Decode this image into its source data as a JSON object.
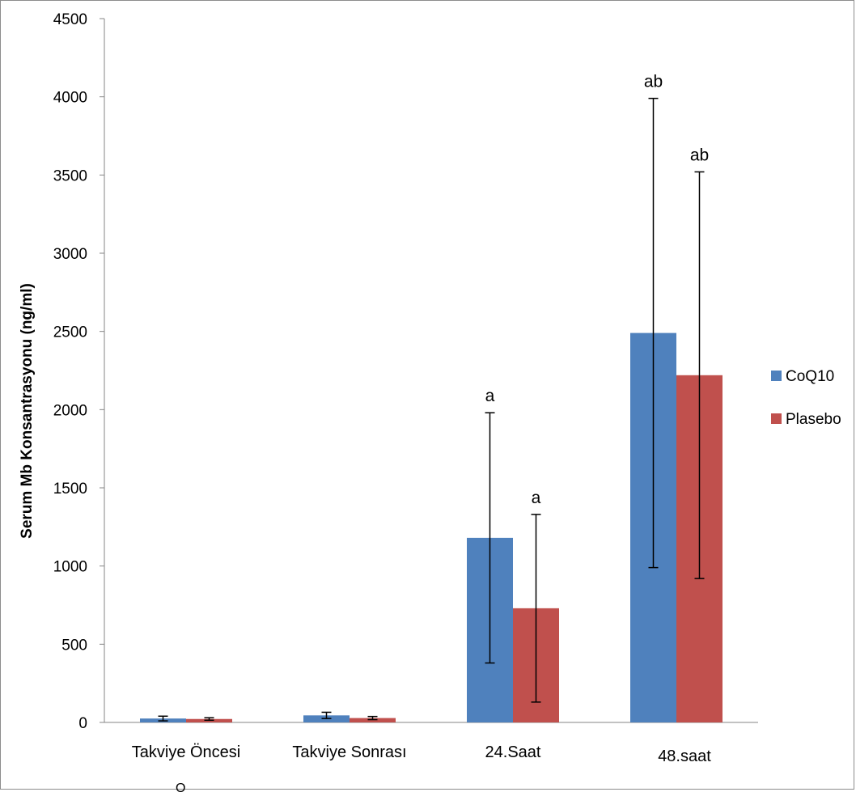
{
  "chart_data": {
    "type": "bar",
    "title": "",
    "xlabel": "",
    "ylabel": "Serum Mb Konsantrasyonu (ng/ml)",
    "ylim": [
      0,
      4500
    ],
    "yticks": [
      0,
      500,
      1000,
      1500,
      2000,
      2500,
      3000,
      3500,
      4000,
      4500
    ],
    "categories": [
      "Takviye Öncesi",
      "Takviye Sonrası",
      "24.Saat",
      "48.saat"
    ],
    "series": [
      {
        "name": "CoQ10",
        "color": "#4f81bd",
        "values": [
          25,
          45,
          1180,
          2490
        ],
        "error": [
          15,
          20,
          800,
          1500
        ],
        "annotations": [
          "",
          "",
          "a",
          "ab"
        ]
      },
      {
        "name": "Plasebo",
        "color": "#c0504d",
        "values": [
          22,
          28,
          730,
          2220
        ],
        "error": [
          8,
          10,
          600,
          1300
        ],
        "annotations": [
          "",
          "",
          "a",
          "ab"
        ]
      }
    ],
    "grid": false,
    "legend_position": "right"
  },
  "page": {
    "bottom_text": "Ö"
  }
}
